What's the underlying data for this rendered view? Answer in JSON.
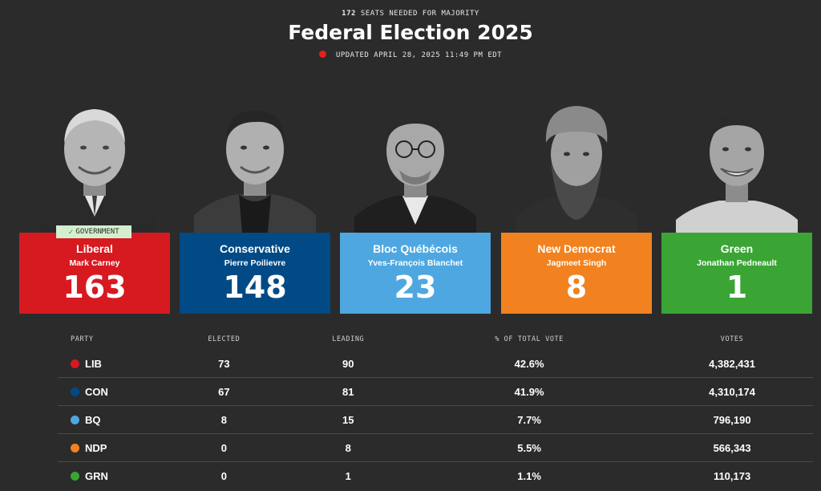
{
  "header": {
    "majority_number": "172",
    "majority_text": "SEATS NEEDED FOR MAJORITY",
    "title": "Federal Election 2025",
    "updated": "UPDATED APRIL 28, 2025 11:49 PM EDT"
  },
  "colors": {
    "background": "#2b2b2b",
    "live": "#e0231c",
    "LIB": "#d71920",
    "CON": "#014a85",
    "BQ": "#4ea7e0",
    "NDP": "#f1821f",
    "GRN": "#3aa535"
  },
  "candidates": [
    {
      "party": "Liberal",
      "leader": "Mark Carney",
      "seats": "163",
      "badge": "GOVERNMENT",
      "photo_icon": "leader-portrait"
    },
    {
      "party": "Conservative",
      "leader": "Pierre Poilievre",
      "seats": "148",
      "photo_icon": "leader-portrait"
    },
    {
      "party": "Bloc Québécois",
      "leader": "Yves-François Blanchet",
      "seats": "23",
      "photo_icon": "leader-portrait"
    },
    {
      "party": "New Democrat",
      "leader": "Jagmeet Singh",
      "seats": "8",
      "photo_icon": "leader-portrait"
    },
    {
      "party": "Green",
      "leader": "Jonathan Pedneault",
      "seats": "1",
      "photo_icon": "leader-portrait"
    }
  ],
  "table": {
    "headers": [
      "PARTY",
      "ELECTED",
      "LEADING",
      "% OF TOTAL VOTE",
      "VOTES"
    ],
    "rows": [
      {
        "party": "LIB",
        "elected": "73",
        "leading": "90",
        "pct": "42.6%",
        "votes": "4,382,431"
      },
      {
        "party": "CON",
        "elected": "67",
        "leading": "81",
        "pct": "41.9%",
        "votes": "4,310,174"
      },
      {
        "party": "BQ",
        "elected": "8",
        "leading": "15",
        "pct": "7.7%",
        "votes": "796,190"
      },
      {
        "party": "NDP",
        "elected": "0",
        "leading": "8",
        "pct": "5.5%",
        "votes": "566,343"
      },
      {
        "party": "GRN",
        "elected": "0",
        "leading": "1",
        "pct": "1.1%",
        "votes": "110,173"
      }
    ]
  }
}
